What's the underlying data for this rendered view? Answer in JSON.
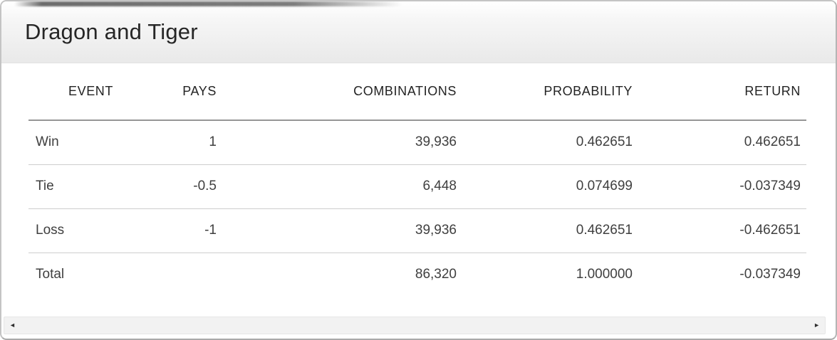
{
  "header": {
    "title": "Dragon and Tiger"
  },
  "table": {
    "column_keys": [
      "event",
      "pays",
      "combinations",
      "probability",
      "return"
    ],
    "headers": [
      "EVENT",
      "PAYS",
      "COMBINATIONS",
      "PROBABILITY",
      "RETURN"
    ],
    "rows": [
      [
        "Win",
        "1",
        "39,936",
        "0.462651",
        "0.462651"
      ],
      [
        "Tie",
        "-0.5",
        "6,448",
        "0.074699",
        "-0.037349"
      ],
      [
        "Loss",
        "-1",
        "39,936",
        "0.462651",
        "-0.462651"
      ],
      [
        "Total",
        "",
        "86,320",
        "1.000000",
        "-0.037349"
      ]
    ]
  },
  "scrollbar": {
    "left_arrow_icon": "◄",
    "right_arrow_icon": "►"
  },
  "colors": {
    "header_band_top": "#ffffff",
    "header_band_bottom": "#e9e9e9",
    "header_rule": "#969696",
    "row_rule": "#cdcdcd",
    "title_text": "#262626",
    "body_text": "#3f3f3f",
    "scrollbar_track": "#f2f2f2",
    "card_border": "#c4c4c4"
  },
  "chart_data": {
    "type": "table",
    "title": "Dragon and Tiger",
    "columns": [
      "Event",
      "Pays",
      "Combinations",
      "Probability",
      "Return"
    ],
    "rows": [
      [
        "Win",
        1,
        39936,
        0.462651,
        0.462651
      ],
      [
        "Tie",
        -0.5,
        6448,
        0.074699,
        -0.037349
      ],
      [
        "Loss",
        -1,
        39936,
        0.462651,
        -0.462651
      ],
      [
        "Total",
        null,
        86320,
        1.0,
        -0.037349
      ]
    ]
  }
}
